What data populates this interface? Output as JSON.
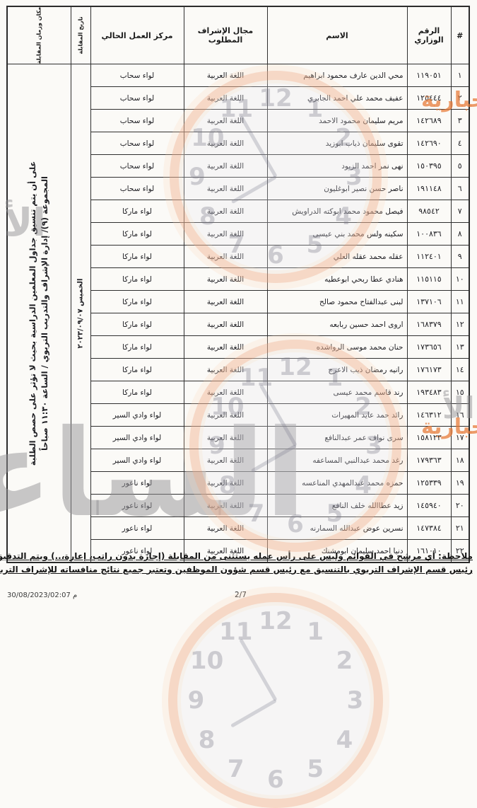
{
  "accent_color": "#e8813a",
  "table": {
    "headers": {
      "num": "#",
      "ministry": "الرقم الوزاري",
      "name": "الاسم",
      "field": "مجال الإشراف المطلوب",
      "center": "مركز العمل الحالي",
      "date": "تاريخ المقابلة",
      "place": "مكان وزمان المقابلة"
    },
    "merged": {
      "date": "الخميس ٢٠٢٣/٠٩/٠٧",
      "place_line1": "المجموعة (٩)/ إدارة الإشراف والتدريب التربوي / الساعة ١١:٣٠ صباحاً",
      "place_line2": "على أن يتم تنسيق جداول المعلمين الدراسية بحيث لا تؤثر على حصص الطلبة"
    },
    "rows": [
      {
        "num": "١",
        "ministry": "١١٩٠٥١",
        "name": "محي الدين عارف محمود ابراهيم",
        "field": "اللغة العربية",
        "center": "لواء سحاب"
      },
      {
        "num": "٢",
        "ministry": "١٢٥٤٤٤",
        "name": "عفيف محمد علي احمد الجابري",
        "field": "اللغة العربية",
        "center": "لواء سحاب"
      },
      {
        "num": "٣",
        "ministry": "١٤٢٦٨٩",
        "name": "مريم سليمان محمود الاحمد",
        "field": "اللغة العربية",
        "center": "لواء سحاب"
      },
      {
        "num": "٤",
        "ministry": "١٤٢٦٩٠",
        "name": "تقوى سليمان ذياب ابوزيد",
        "field": "اللغة العربية",
        "center": "لواء سحاب"
      },
      {
        "num": "٥",
        "ministry": "١٥٠٣٩٥",
        "name": "نهى نمر احمد الزبود",
        "field": "اللغة العربية",
        "center": "لواء سحاب"
      },
      {
        "num": "٦",
        "ministry": "١٩١١٤٨",
        "name": "ناصر حسن نصير ابوغليون",
        "field": "اللغة العربية",
        "center": "لواء سحاب"
      },
      {
        "num": "٧",
        "ministry": "٩٨٥٤٢",
        "name": "فيصل محمود محمد ابوكته الدراويش",
        "field": "اللغة العربية",
        "center": "لواء ماركا"
      },
      {
        "num": "٨",
        "ministry": "١٠٠٨٣٦",
        "name": "سكينه ولس محمد بني عيسى",
        "field": "اللغة العربية",
        "center": "لواء ماركا"
      },
      {
        "num": "٩",
        "ministry": "١١٢٤٠١",
        "name": "عقله محمد عقله العلي",
        "field": "اللغة العربية",
        "center": "لواء ماركا"
      },
      {
        "num": "١٠",
        "ministry": "١١٥١١٥",
        "name": "هنادي عطا ربحي ابوعطيه",
        "field": "اللغة العربية",
        "center": "لواء ماركا"
      },
      {
        "num": "١١",
        "ministry": "١٣٧١٠٦",
        "name": "لبنى عبدالفتاح محمود صالح",
        "field": "اللغة العربية",
        "center": "لواء ماركا"
      },
      {
        "num": "١٢",
        "ministry": "١٦٨٣٧٩",
        "name": "اروى احمد حسين ربابعه",
        "field": "اللغة العربية",
        "center": "لواء ماركا"
      },
      {
        "num": "١٣",
        "ministry": "١٧٣٦٥٦",
        "name": "حنان محمد موسى الرواشده",
        "field": "اللغة العربية",
        "center": "لواء ماركا"
      },
      {
        "num": "١٤",
        "ministry": "١٧٦١٧٣",
        "name": "رانيه رمضان ذيب الاعرج",
        "field": "اللغة العربية",
        "center": "لواء ماركا"
      },
      {
        "num": "١٥",
        "ministry": "١٩٣٤٨٣",
        "name": "رند قاسم محمد عيسى",
        "field": "اللغة العربية",
        "center": "لواء ماركا"
      },
      {
        "num": "١٦",
        "ministry": "١٤٦٣١٢",
        "name": "رائد حمد عايد المهيرات",
        "field": "اللغة العربية",
        "center": "لواء وادي السير"
      },
      {
        "num": "١٧",
        "ministry": "١٥٨١٢٣",
        "name": "سرى نواف عمر عبدالنافع",
        "field": "اللغة العربية",
        "center": "لواء وادي السير"
      },
      {
        "num": "١٨",
        "ministry": "١٧٩٣٦٣",
        "name": "رغد محمد عبدالنبي المساعفه",
        "field": "اللغة العربية",
        "center": "لواء وادي السير"
      },
      {
        "num": "١٩",
        "ministry": "١٢٥٣٣٩",
        "name": "حمزه محمد عبدالمهدي المناعسه",
        "field": "اللغة العربية",
        "center": "لواء ناعور"
      },
      {
        "num": "٢٠",
        "ministry": "١٤٥٩٤٠",
        "name": "زيد عطاالله خلف النافع",
        "field": "اللغة العربية",
        "center": "لواء ناعور"
      },
      {
        "num": "٢١",
        "ministry": "١٤٧٣٨٤",
        "name": "نسرين عوض عبدالله السمارنه",
        "field": "اللغة العربية",
        "center": "لواء ناعور"
      },
      {
        "num": "٢٢",
        "ministry": "١٦١٠١٠",
        "name": "دنيا احمد سليمان ابومشنك",
        "field": "اللغة العربية",
        "center": "لواء ناعور"
      }
    ]
  },
  "note": {
    "line1": "ملاحظة: أي مرشح في القوائم وليس على رأس عمله يستثنى من المقابلة (إجازة بدون راتب، إعارة،..) ويتم التدقيق من",
    "line2": "رئيس قسم الإشراف التربوي بالتنسيق مع رئيس قسم شؤون الموظفين وتعتبر جميع نتائج منافساته للإشراف التربوي ملغاة"
  },
  "footer": {
    "timestamp": "30/08/2023/02:07 م",
    "page": "2/7"
  },
  "watermark": {
    "outlet": "الإخبارية",
    "brand": "الساعة",
    "fragment": "الأ",
    "clock_numbers": [
      "12",
      "1",
      "2",
      "3",
      "4",
      "5",
      "6",
      "7",
      "8",
      "9",
      "10",
      "11"
    ]
  }
}
